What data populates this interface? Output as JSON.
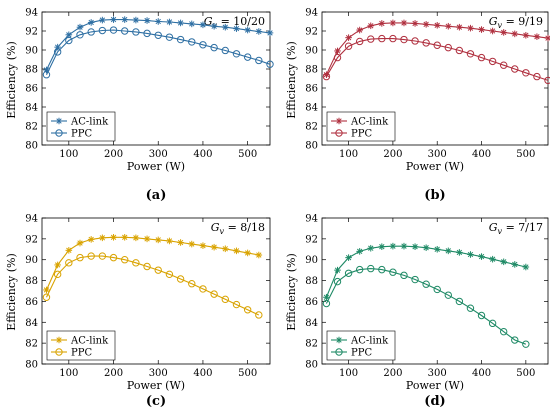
{
  "chart_data": [
    {
      "type": "line",
      "caption": "(a)",
      "gain_label": "G_v = 10/20",
      "gain_symbol": "G",
      "gain_sub": "v",
      "gain_value": " = 10/20",
      "xlabel": "Power (W)",
      "ylabel": "Efficiency (%)",
      "xlim": [
        40,
        550
      ],
      "ylim": [
        80,
        94
      ],
      "xticks": [
        100,
        200,
        300,
        400,
        500
      ],
      "yticks": [
        80,
        82,
        84,
        86,
        88,
        90,
        92,
        94
      ],
      "grid": false,
      "legend_position": "bottom-left",
      "color": "#2e6fa3",
      "series": [
        {
          "name": "AC-link",
          "marker": "asterisk",
          "x": [
            50,
            75,
            100,
            125,
            150,
            175,
            200,
            225,
            250,
            275,
            300,
            325,
            350,
            375,
            400,
            425,
            450,
            475,
            500,
            525,
            550
          ],
          "y": [
            87.9,
            90.3,
            91.6,
            92.4,
            92.9,
            93.15,
            93.2,
            93.2,
            93.15,
            93.1,
            93.0,
            92.95,
            92.85,
            92.75,
            92.65,
            92.5,
            92.4,
            92.25,
            92.1,
            91.95,
            91.8
          ]
        },
        {
          "name": "PPC",
          "marker": "circle",
          "x": [
            50,
            75,
            100,
            125,
            150,
            175,
            200,
            225,
            250,
            275,
            300,
            325,
            350,
            375,
            400,
            425,
            450,
            475,
            500,
            525,
            550
          ],
          "y": [
            87.4,
            89.8,
            91.0,
            91.6,
            91.9,
            92.05,
            92.1,
            92.0,
            91.9,
            91.75,
            91.55,
            91.35,
            91.1,
            90.85,
            90.55,
            90.25,
            89.95,
            89.6,
            89.25,
            88.9,
            88.5
          ]
        }
      ]
    },
    {
      "type": "line",
      "caption": "(b)",
      "gain_label": "G_v = 9/19",
      "gain_symbol": "G",
      "gain_sub": "v",
      "gain_value": " = 9/19",
      "xlabel": "Power (W)",
      "ylabel": "Efficiency (%)",
      "xlim": [
        40,
        550
      ],
      "ylim": [
        80,
        94
      ],
      "xticks": [
        100,
        200,
        300,
        400,
        500
      ],
      "yticks": [
        80,
        82,
        84,
        86,
        88,
        90,
        92,
        94
      ],
      "grid": false,
      "legend_position": "bottom-left",
      "color": "#b0303f",
      "series": [
        {
          "name": "AC-link",
          "marker": "asterisk",
          "x": [
            50,
            75,
            100,
            125,
            150,
            175,
            200,
            225,
            250,
            275,
            300,
            325,
            350,
            375,
            400,
            425,
            450,
            475,
            500,
            525,
            550
          ],
          "y": [
            87.4,
            89.9,
            91.3,
            92.1,
            92.55,
            92.8,
            92.85,
            92.85,
            92.8,
            92.7,
            92.6,
            92.5,
            92.4,
            92.3,
            92.15,
            92.0,
            91.85,
            91.7,
            91.55,
            91.4,
            91.25
          ]
        },
        {
          "name": "PPC",
          "marker": "circle",
          "x": [
            50,
            75,
            100,
            125,
            150,
            175,
            200,
            225,
            250,
            275,
            300,
            325,
            350,
            375,
            400,
            425,
            450,
            475,
            500,
            525,
            550
          ],
          "y": [
            87.2,
            89.2,
            90.4,
            90.9,
            91.15,
            91.2,
            91.2,
            91.1,
            90.95,
            90.75,
            90.5,
            90.25,
            89.95,
            89.6,
            89.2,
            88.8,
            88.4,
            88.0,
            87.6,
            87.2,
            86.8
          ]
        }
      ]
    },
    {
      "type": "line",
      "caption": "(c)",
      "gain_label": "G_v = 8/18",
      "gain_symbol": "G",
      "gain_sub": "v",
      "gain_value": " = 8/18",
      "xlabel": "Power (W)",
      "ylabel": "Efficiency (%)",
      "xlim": [
        40,
        550
      ],
      "ylim": [
        80,
        94
      ],
      "xticks": [
        100,
        200,
        300,
        400,
        500
      ],
      "yticks": [
        80,
        82,
        84,
        86,
        88,
        90,
        92,
        94
      ],
      "grid": false,
      "legend_position": "bottom-left",
      "color": "#d9a300",
      "series": [
        {
          "name": "AC-link",
          "marker": "asterisk",
          "x": [
            50,
            75,
            100,
            125,
            150,
            175,
            200,
            225,
            250,
            275,
            300,
            325,
            350,
            375,
            400,
            425,
            450,
            475,
            500,
            525
          ],
          "y": [
            87.1,
            89.5,
            90.9,
            91.6,
            91.95,
            92.1,
            92.15,
            92.15,
            92.1,
            92.0,
            91.9,
            91.8,
            91.65,
            91.5,
            91.35,
            91.2,
            91.05,
            90.85,
            90.65,
            90.45
          ]
        },
        {
          "name": "PPC",
          "marker": "circle",
          "x": [
            50,
            75,
            100,
            125,
            150,
            175,
            200,
            225,
            250,
            275,
            300,
            325,
            350,
            375,
            400,
            425,
            450,
            475,
            500,
            525
          ],
          "y": [
            86.4,
            88.6,
            89.7,
            90.2,
            90.35,
            90.35,
            90.2,
            90.0,
            89.7,
            89.35,
            89.0,
            88.6,
            88.15,
            87.7,
            87.2,
            86.7,
            86.2,
            85.7,
            85.2,
            84.7
          ]
        }
      ]
    },
    {
      "type": "line",
      "caption": "(d)",
      "gain_label": "G_v = 7/17",
      "gain_symbol": "G",
      "gain_sub": "v",
      "gain_value": " = 7/17",
      "xlabel": "Power (W)",
      "ylabel": "Efficiency (%)",
      "xlim": [
        40,
        550
      ],
      "ylim": [
        80,
        94
      ],
      "xticks": [
        100,
        200,
        300,
        400,
        500
      ],
      "yticks": [
        80,
        82,
        84,
        86,
        88,
        90,
        92,
        94
      ],
      "grid": false,
      "legend_position": "bottom-left",
      "color": "#1f8a66",
      "series": [
        {
          "name": "AC-link",
          "marker": "asterisk",
          "x": [
            50,
            75,
            100,
            125,
            150,
            175,
            200,
            225,
            250,
            275,
            300,
            325,
            350,
            375,
            400,
            425,
            450,
            475,
            500
          ],
          "y": [
            86.4,
            89.0,
            90.2,
            90.8,
            91.1,
            91.25,
            91.3,
            91.3,
            91.25,
            91.15,
            91.0,
            90.85,
            90.7,
            90.5,
            90.3,
            90.05,
            89.8,
            89.55,
            89.3
          ]
        },
        {
          "name": "PPC",
          "marker": "circle",
          "x": [
            50,
            75,
            100,
            125,
            150,
            175,
            200,
            225,
            250,
            275,
            300,
            325,
            350,
            375,
            400,
            425,
            450,
            475,
            500
          ],
          "y": [
            85.8,
            87.9,
            88.7,
            89.05,
            89.15,
            89.05,
            88.8,
            88.5,
            88.1,
            87.65,
            87.15,
            86.6,
            86.0,
            85.35,
            84.65,
            83.9,
            83.1,
            82.3,
            81.9
          ]
        }
      ]
    }
  ]
}
